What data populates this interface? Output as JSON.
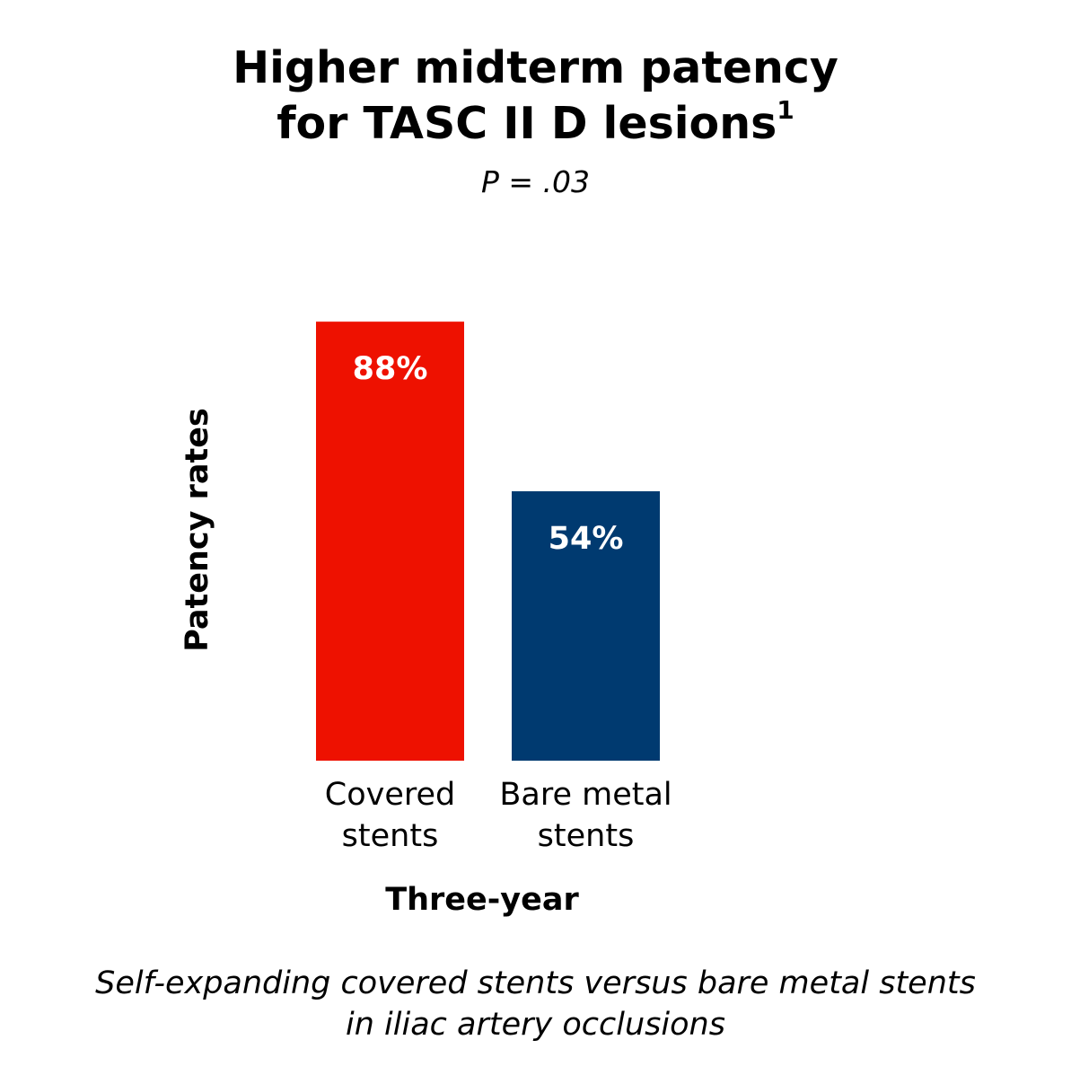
{
  "header": {
    "title_line1": "Higher midterm patency",
    "title_line2": "for TASC II D lesions",
    "title_superscript": "1",
    "subtitle": "P = .03"
  },
  "footnote": {
    "line1": "Self-expanding covered stents versus bare metal stents",
    "line2": "in iliac artery occlusions"
  },
  "chart_data": {
    "type": "bar",
    "title": "Higher midterm patency for TASC II D lesions",
    "subtitle": "P = .03",
    "xlabel": "Three-year",
    "ylabel": "Patency rates",
    "ylim": [
      0,
      100
    ],
    "grid": false,
    "legend": "none",
    "categories": [
      [
        "Covered",
        "stents"
      ],
      [
        "Bare metal",
        "stents"
      ]
    ],
    "values": [
      88,
      54
    ],
    "data_labels": [
      "88%",
      "54%"
    ],
    "colors": [
      "#ee1100",
      "#003a70"
    ],
    "label_color": "#ffffff"
  }
}
